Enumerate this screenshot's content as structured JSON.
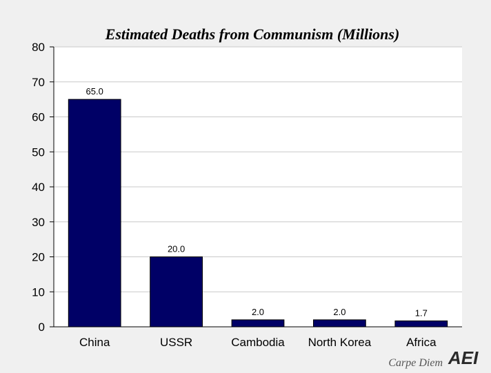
{
  "chart_data": {
    "type": "bar",
    "title": "Estimated Deaths from Communism (Millions)",
    "xlabel": "",
    "ylabel": "",
    "categories": [
      "China",
      "USSR",
      "Cambodia",
      "North Korea",
      "Africa"
    ],
    "values": [
      65.0,
      20.0,
      2.0,
      2.0,
      1.7
    ],
    "data_labels": [
      "65.0",
      "20.0",
      "2.0",
      "2.0",
      "1.7"
    ],
    "ylim": [
      0,
      80
    ],
    "yticks": [
      0,
      10,
      20,
      30,
      40,
      50,
      60,
      70,
      80
    ],
    "grid": true,
    "legend": "none"
  },
  "colors": {
    "bar": "#000066",
    "plot_background": "#ffffff",
    "page_background": "#f0f0f0",
    "gridline": "#c8c8c8"
  },
  "branding": {
    "text": "Carpe Diem",
    "logo_text": "AEI"
  }
}
